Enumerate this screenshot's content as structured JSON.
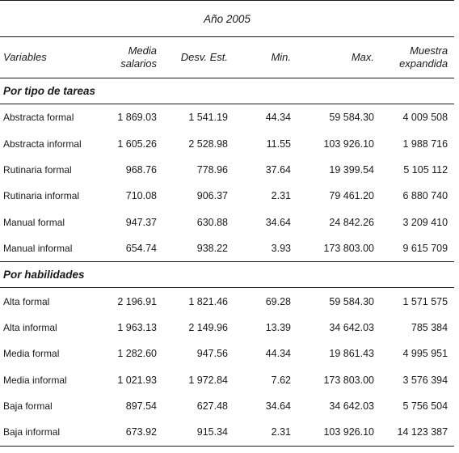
{
  "title": "Año 2005",
  "columns": [
    "Variables",
    "Media salarios",
    "Desv. Est.",
    "Min.",
    "Max.",
    "Muestra expandida"
  ],
  "sections": [
    {
      "heading": "Por tipo de tareas",
      "rows": [
        [
          "Abstracta formal",
          "1 869.03",
          "1 541.19",
          "44.34",
          "59 584.30",
          "4 009 508"
        ],
        [
          "Abstracta informal",
          "1 605.26",
          "2 528.98",
          "11.55",
          "103 926.10",
          "1 988 716"
        ],
        [
          "Rutinaria formal",
          "968.76",
          "778.96",
          "37.64",
          "19 399.54",
          "5 105 112"
        ],
        [
          "Rutinaria informal",
          "710.08",
          "906.37",
          "2.31",
          "79 461.20",
          "6 880 740"
        ],
        [
          "Manual formal",
          "947.37",
          "630.88",
          "34.64",
          "24 842.26",
          "3 209 410"
        ],
        [
          "Manual informal",
          "654.74",
          "938.22",
          "3.93",
          "173 803.00",
          "9 615 709"
        ]
      ]
    },
    {
      "heading": "Por habilidades",
      "rows": [
        [
          "Alta formal",
          "2 196.91",
          "1 821.46",
          "69.28",
          "59 584.30",
          "1 571 575"
        ],
        [
          "Alta informal",
          "1 963.13",
          "2 149.96",
          "13.39",
          "34 642.03",
          "785 384"
        ],
        [
          "Media formal",
          "1 282.60",
          "947.56",
          "44.34",
          "19 861.43",
          "4 995 951"
        ],
        [
          "Media informal",
          "1 021.93",
          "1 972.84",
          "7.62",
          "173 803.00",
          "3 576 394"
        ],
        [
          "Baja formal",
          "897.54",
          "627.48",
          "34.64",
          "34 642.03",
          "5 756 504"
        ],
        [
          "Baja informal",
          "673.92",
          "915.34",
          "2.31",
          "103 926.10",
          "14 123 387"
        ]
      ]
    }
  ]
}
